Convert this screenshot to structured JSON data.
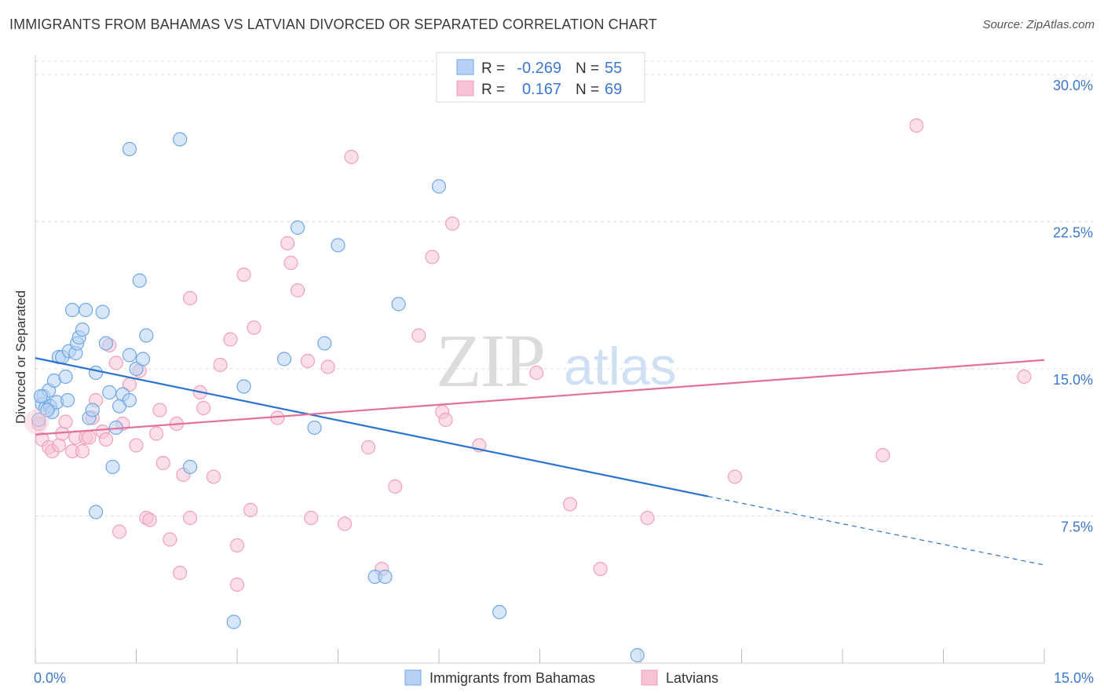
{
  "header": {
    "title": "IMMIGRANTS FROM BAHAMAS VS LATVIAN DIVORCED OR SEPARATED CORRELATION CHART",
    "source": "Source: ZipAtlas.com"
  },
  "watermark": {
    "zip": "ZIP",
    "atlas": "atlas"
  },
  "colors": {
    "blue": "#6fa6e6",
    "blue_fill": "#b6d1f3",
    "blue_line": "#2b73d2",
    "pink": "#f0a0b8",
    "pink_fill": "#f7c3d3",
    "pink_line": "#e2709a",
    "tick_text": "#3b78cf",
    "grid": "#dddddd"
  },
  "legend_stats": [
    {
      "r_label": "R =",
      "r_value": "-0.269",
      "n_label": "N =",
      "n_value": "55"
    },
    {
      "r_label": "R =",
      "r_value": "0.167",
      "n_label": "N =",
      "n_value": "69"
    }
  ],
  "chart_data": {
    "type": "scatter",
    "ylabel": "Divorced or Separated",
    "xlim": [
      0,
      15
    ],
    "ylim": [
      0,
      31
    ],
    "x_ticks": [
      "0.0%",
      "15.0%"
    ],
    "y_ticks": [
      {
        "value": 30.0,
        "label": "30.0%"
      },
      {
        "value": 22.5,
        "label": "22.5%"
      },
      {
        "value": 15.0,
        "label": "15.0%"
      },
      {
        "value": 7.5,
        "label": "7.5%"
      }
    ],
    "grid": true,
    "legend_position": "bottom",
    "series": [
      {
        "name": "Immigrants from Bahamas",
        "color": "blue",
        "trend": {
          "x0": 0.0,
          "y0": 15.55,
          "x1": 10.0,
          "y1": 8.5,
          "dash_to_x": 15.0,
          "dash_to_y": 5.0
        },
        "points": [
          [
            0.05,
            12.4
          ],
          [
            0.1,
            13.2
          ],
          [
            0.12,
            13.6
          ],
          [
            0.15,
            13.0
          ],
          [
            0.2,
            13.9
          ],
          [
            0.22,
            13.1
          ],
          [
            0.25,
            12.8
          ],
          [
            0.28,
            14.4
          ],
          [
            0.32,
            13.3
          ],
          [
            0.35,
            15.6
          ],
          [
            0.4,
            15.6
          ],
          [
            0.45,
            14.6
          ],
          [
            0.48,
            13.4
          ],
          [
            0.5,
            15.9
          ],
          [
            0.55,
            18.0
          ],
          [
            0.6,
            15.8
          ],
          [
            0.62,
            16.3
          ],
          [
            0.65,
            16.6
          ],
          [
            0.7,
            17.0
          ],
          [
            0.75,
            18.0
          ],
          [
            0.8,
            12.5
          ],
          [
            0.85,
            12.9
          ],
          [
            0.9,
            14.8
          ],
          [
            1.0,
            17.9
          ],
          [
            1.05,
            16.3
          ],
          [
            1.1,
            13.8
          ],
          [
            1.15,
            10.0
          ],
          [
            1.2,
            12.0
          ],
          [
            1.25,
            13.1
          ],
          [
            1.3,
            13.7
          ],
          [
            1.4,
            13.4
          ],
          [
            1.5,
            15.0
          ],
          [
            1.55,
            19.5
          ],
          [
            1.65,
            16.7
          ],
          [
            1.6,
            15.5
          ],
          [
            1.4,
            15.7
          ],
          [
            1.4,
            26.2
          ],
          [
            2.15,
            26.7
          ],
          [
            2.3,
            10.0
          ],
          [
            0.9,
            7.7
          ],
          [
            3.1,
            14.1
          ],
          [
            2.95,
            2.1
          ],
          [
            3.7,
            15.5
          ],
          [
            3.9,
            22.2
          ],
          [
            4.15,
            12.0
          ],
          [
            4.3,
            16.3
          ],
          [
            4.5,
            21.3
          ],
          [
            5.05,
            4.4
          ],
          [
            5.2,
            4.4
          ],
          [
            5.4,
            18.3
          ],
          [
            6.0,
            24.3
          ],
          [
            6.9,
            2.6
          ],
          [
            8.95,
            0.4
          ],
          [
            0.08,
            13.6
          ],
          [
            0.18,
            12.9
          ]
        ]
      },
      {
        "name": "Latvians",
        "color": "pink",
        "trend": {
          "x0": 0.0,
          "y0": 11.65,
          "x1": 15.0,
          "y1": 15.45
        },
        "points": [
          [
            0.05,
            12.2
          ],
          [
            0.1,
            11.4
          ],
          [
            0.2,
            11.0
          ],
          [
            0.25,
            10.8
          ],
          [
            0.35,
            11.1
          ],
          [
            0.4,
            11.7
          ],
          [
            0.45,
            12.3
          ],
          [
            0.55,
            10.8
          ],
          [
            0.6,
            11.5
          ],
          [
            0.7,
            10.8
          ],
          [
            0.75,
            11.5
          ],
          [
            0.8,
            11.5
          ],
          [
            0.85,
            12.5
          ],
          [
            0.9,
            13.4
          ],
          [
            1.0,
            11.8
          ],
          [
            1.05,
            11.4
          ],
          [
            1.1,
            16.2
          ],
          [
            1.2,
            15.3
          ],
          [
            1.25,
            6.7
          ],
          [
            1.3,
            12.2
          ],
          [
            1.4,
            14.2
          ],
          [
            1.5,
            11.1
          ],
          [
            1.55,
            14.9
          ],
          [
            1.65,
            7.4
          ],
          [
            1.7,
            7.3
          ],
          [
            1.8,
            11.7
          ],
          [
            1.85,
            12.9
          ],
          [
            1.9,
            10.2
          ],
          [
            2.0,
            6.3
          ],
          [
            2.1,
            12.2
          ],
          [
            2.15,
            4.6
          ],
          [
            2.2,
            9.6
          ],
          [
            2.3,
            18.6
          ],
          [
            2.3,
            7.4
          ],
          [
            2.45,
            13.8
          ],
          [
            2.5,
            13.0
          ],
          [
            2.65,
            9.5
          ],
          [
            2.75,
            15.2
          ],
          [
            2.9,
            16.5
          ],
          [
            3.0,
            6.0
          ],
          [
            3.0,
            4.0
          ],
          [
            3.1,
            19.8
          ],
          [
            3.2,
            7.8
          ],
          [
            3.25,
            17.1
          ],
          [
            3.6,
            12.5
          ],
          [
            3.75,
            21.4
          ],
          [
            3.8,
            20.4
          ],
          [
            3.9,
            19.0
          ],
          [
            4.05,
            15.4
          ],
          [
            4.1,
            7.4
          ],
          [
            4.35,
            15.1
          ],
          [
            4.6,
            7.1
          ],
          [
            4.7,
            25.8
          ],
          [
            4.95,
            11.0
          ],
          [
            5.15,
            4.8
          ],
          [
            5.35,
            9.0
          ],
          [
            5.7,
            16.7
          ],
          [
            5.9,
            20.7
          ],
          [
            6.05,
            12.8
          ],
          [
            6.1,
            12.4
          ],
          [
            6.2,
            22.4
          ],
          [
            6.6,
            11.1
          ],
          [
            7.45,
            14.8
          ],
          [
            7.95,
            8.1
          ],
          [
            8.4,
            4.8
          ],
          [
            9.1,
            7.4
          ],
          [
            10.4,
            9.5
          ],
          [
            12.6,
            10.6
          ],
          [
            13.1,
            27.4
          ]
        ]
      }
    ],
    "extra_points_latvians": [
      [
        14.7,
        14.6
      ]
    ]
  }
}
